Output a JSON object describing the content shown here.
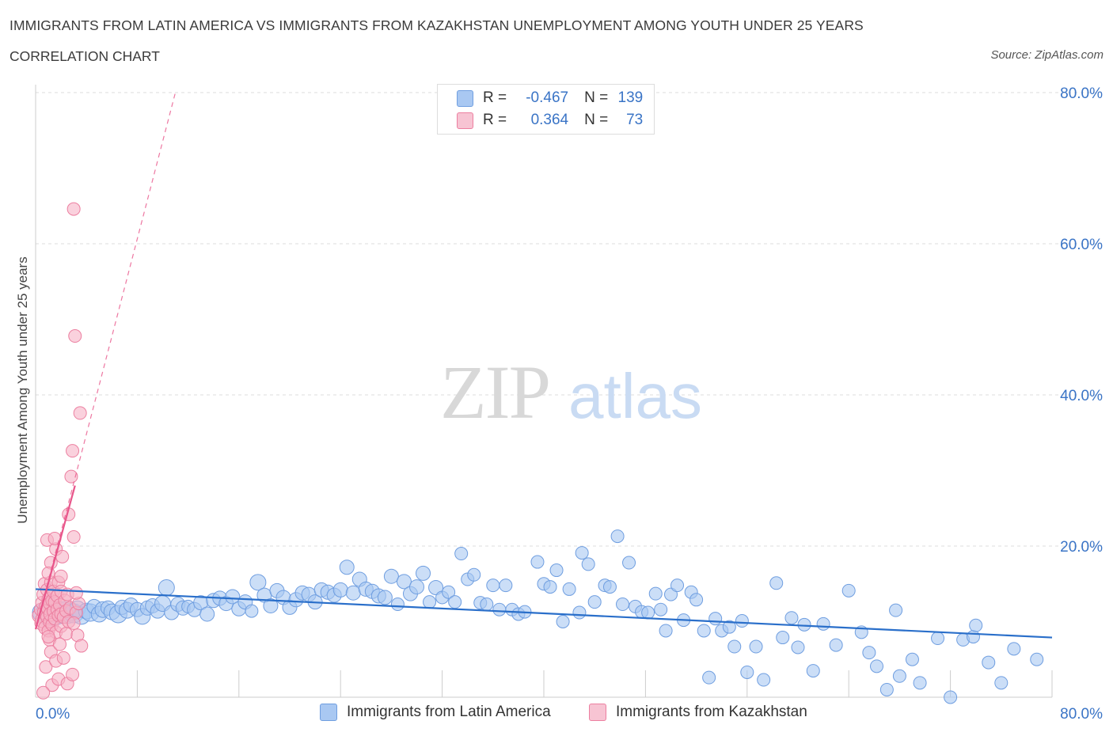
{
  "title": "IMMIGRANTS FROM LATIN AMERICA VS IMMIGRANTS FROM KAZAKHSTAN UNEMPLOYMENT AMONG YOUTH UNDER 25 YEARS",
  "subtitle": "CORRELATION CHART",
  "source": "Source: ZipAtlas.com",
  "watermark": {
    "zip": "ZIP",
    "atlas": "atlas"
  },
  "colors": {
    "blue_fill": "#a9c8f2",
    "blue_stroke": "#6f9ee0",
    "blue_line": "#2a6fca",
    "pink_fill": "#f7b3c6",
    "pink_stroke": "#ec7fa0",
    "pink_line": "#e8558a",
    "axis_text": "#3a74c6",
    "grid": "#dddddd"
  },
  "legend": {
    "rows": [
      {
        "r_label": "R =",
        "r_value": "-0.467",
        "n_label": "N =",
        "n_value": "139",
        "color": "#a9c8f2"
      },
      {
        "r_label": "R =",
        "r_value": "0.364",
        "n_label": "N =",
        "n_value": "73",
        "color": "#f7b3c6"
      }
    ]
  },
  "bottom_legend": [
    "Immigrants from Latin America",
    "Immigrants from Kazakhstan"
  ],
  "chart_data": {
    "type": "scatter",
    "xlabel": "",
    "ylabel": "Unemployment Among Youth under 25 years",
    "xlim": [
      0,
      80
    ],
    "ylim": [
      0,
      80
    ],
    "x_tick_labels": [
      "0.0%",
      "80.0%"
    ],
    "y_tick_labels": [
      "20.0%",
      "40.0%",
      "60.0%",
      "80.0%"
    ],
    "y_ticks": [
      20,
      40,
      60,
      80
    ],
    "series": [
      {
        "name": "Immigrants from Latin America",
        "R": -0.467,
        "N": 139,
        "trend": {
          "x": [
            0,
            80
          ],
          "y": [
            14.3,
            7.9
          ]
        },
        "points": [
          [
            0.5,
            11.2,
            12
          ],
          [
            0.8,
            11.5,
            11
          ],
          [
            1.0,
            10.8,
            13
          ],
          [
            1.2,
            11.8,
            12
          ],
          [
            1.5,
            11.0,
            14
          ],
          [
            1.8,
            11.4,
            12
          ],
          [
            2.0,
            10.9,
            11
          ],
          [
            2.2,
            11.6,
            10
          ],
          [
            2.5,
            11.0,
            12
          ],
          [
            2.8,
            11.3,
            11
          ],
          [
            3.0,
            11.1,
            12
          ],
          [
            3.3,
            11.7,
            10
          ],
          [
            3.6,
            10.8,
            11
          ],
          [
            4.0,
            11.4,
            10
          ],
          [
            4.3,
            11.2,
            11
          ],
          [
            4.6,
            12.0,
            9
          ],
          [
            5.0,
            11.0,
            10
          ],
          [
            5.3,
            11.6,
            10
          ],
          [
            5.7,
            11.8,
            9
          ],
          [
            6.0,
            11.3,
            10
          ],
          [
            6.5,
            11.0,
            11
          ],
          [
            6.8,
            11.9,
            9
          ],
          [
            7.2,
            11.5,
            10
          ],
          [
            7.5,
            12.2,
            9
          ],
          [
            8.0,
            11.6,
            9
          ],
          [
            8.4,
            10.7,
            10
          ],
          [
            8.8,
            11.8,
            9
          ],
          [
            9.2,
            12.1,
            9
          ],
          [
            9.6,
            11.4,
            9
          ],
          [
            10.0,
            12.4,
            10
          ],
          [
            10.3,
            14.5,
            10
          ],
          [
            10.7,
            11.2,
            9
          ],
          [
            11.2,
            12.3,
            9
          ],
          [
            11.6,
            11.8,
            9
          ],
          [
            12.0,
            12.0,
            8
          ],
          [
            12.5,
            11.6,
            9
          ],
          [
            13.0,
            12.5,
            9
          ],
          [
            13.5,
            11.0,
            9
          ],
          [
            14.0,
            12.8,
            9
          ],
          [
            14.5,
            13.1,
            9
          ],
          [
            15.0,
            12.4,
            9
          ],
          [
            15.5,
            13.3,
            9
          ],
          [
            16.0,
            11.7,
            9
          ],
          [
            16.5,
            12.6,
            9
          ],
          [
            17.0,
            11.4,
            8
          ],
          [
            17.5,
            15.2,
            10
          ],
          [
            18.0,
            13.5,
            9
          ],
          [
            18.5,
            12.1,
            9
          ],
          [
            19.0,
            14.1,
            9
          ],
          [
            19.5,
            13.2,
            9
          ],
          [
            20.0,
            11.9,
            9
          ],
          [
            20.5,
            12.9,
            9
          ],
          [
            21.0,
            13.8,
            9
          ],
          [
            21.5,
            13.6,
            9
          ],
          [
            22.0,
            12.6,
            9
          ],
          [
            22.5,
            14.2,
            9
          ],
          [
            23.0,
            13.9,
            9
          ],
          [
            23.5,
            13.5,
            9
          ],
          [
            24.0,
            14.2,
            9
          ],
          [
            24.5,
            17.2,
            9
          ],
          [
            25.0,
            13.8,
            9
          ],
          [
            25.5,
            15.6,
            9
          ],
          [
            26.0,
            14.3,
            9
          ],
          [
            26.5,
            14.0,
            9
          ],
          [
            27.0,
            13.4,
            9
          ],
          [
            27.5,
            13.2,
            9
          ],
          [
            28.0,
            16.0,
            9
          ],
          [
            28.5,
            12.3,
            8
          ],
          [
            29.0,
            15.3,
            9
          ],
          [
            29.5,
            13.7,
            9
          ],
          [
            30.0,
            14.6,
            9
          ],
          [
            30.5,
            16.4,
            9
          ],
          [
            31.0,
            12.6,
            8
          ],
          [
            31.5,
            14.5,
            9
          ],
          [
            32.0,
            13.2,
            8
          ],
          [
            32.5,
            13.9,
            8
          ],
          [
            33.0,
            12.6,
            8
          ],
          [
            33.5,
            19.0,
            8
          ],
          [
            34.0,
            15.6,
            8
          ],
          [
            34.5,
            16.2,
            8
          ],
          [
            35.0,
            12.5,
            8
          ],
          [
            35.5,
            12.3,
            8
          ],
          [
            36.0,
            14.8,
            8
          ],
          [
            36.5,
            11.6,
            8
          ],
          [
            37.0,
            14.8,
            8
          ],
          [
            37.5,
            11.6,
            8
          ],
          [
            38.0,
            11.0,
            8
          ],
          [
            38.5,
            11.3,
            8
          ],
          [
            39.5,
            17.9,
            8
          ],
          [
            40.0,
            15.0,
            8
          ],
          [
            40.5,
            14.6,
            8
          ],
          [
            41.0,
            16.8,
            8
          ],
          [
            41.5,
            10.0,
            8
          ],
          [
            42.0,
            14.3,
            8
          ],
          [
            42.8,
            11.2,
            8
          ],
          [
            43.0,
            19.1,
            8
          ],
          [
            43.5,
            17.6,
            8
          ],
          [
            44.0,
            12.6,
            8
          ],
          [
            44.8,
            14.8,
            8
          ],
          [
            45.2,
            14.6,
            8
          ],
          [
            45.8,
            21.3,
            8
          ],
          [
            46.2,
            12.3,
            8
          ],
          [
            46.7,
            17.8,
            8
          ],
          [
            47.2,
            12.0,
            8
          ],
          [
            47.7,
            11.3,
            8
          ],
          [
            48.2,
            11.2,
            8
          ],
          [
            48.8,
            13.7,
            8
          ],
          [
            49.2,
            11.6,
            8
          ],
          [
            49.6,
            8.8,
            8
          ],
          [
            50.0,
            13.6,
            8
          ],
          [
            50.5,
            14.8,
            8
          ],
          [
            51.0,
            10.2,
            8
          ],
          [
            51.6,
            13.9,
            8
          ],
          [
            52.0,
            12.9,
            8
          ],
          [
            52.6,
            8.8,
            8
          ],
          [
            53.0,
            2.6,
            8
          ],
          [
            53.5,
            10.4,
            8
          ],
          [
            54.0,
            8.8,
            8
          ],
          [
            54.6,
            9.3,
            8
          ],
          [
            55.0,
            6.7,
            8
          ],
          [
            55.6,
            10.1,
            8
          ],
          [
            56.0,
            3.3,
            8
          ],
          [
            56.7,
            6.7,
            8
          ],
          [
            57.3,
            2.3,
            8
          ],
          [
            58.3,
            15.1,
            8
          ],
          [
            58.8,
            7.9,
            8
          ],
          [
            59.5,
            10.5,
            8
          ],
          [
            60.0,
            6.6,
            8
          ],
          [
            60.5,
            9.6,
            8
          ],
          [
            61.2,
            3.5,
            8
          ],
          [
            62.0,
            9.7,
            8
          ],
          [
            63.0,
            6.9,
            8
          ],
          [
            64.0,
            14.1,
            8
          ],
          [
            65.0,
            8.6,
            8
          ],
          [
            65.6,
            5.9,
            8
          ],
          [
            66.2,
            4.1,
            8
          ],
          [
            67.0,
            1.0,
            8
          ],
          [
            67.7,
            11.5,
            8
          ],
          [
            68.0,
            2.8,
            8
          ],
          [
            69.0,
            5.0,
            8
          ],
          [
            69.6,
            1.9,
            8
          ],
          [
            71.0,
            7.8,
            8
          ],
          [
            72.0,
            0.0,
            8
          ],
          [
            73.0,
            7.6,
            8
          ],
          [
            73.8,
            8.0,
            8
          ],
          [
            74.0,
            9.5,
            8
          ],
          [
            75.0,
            4.6,
            8
          ],
          [
            76.0,
            1.9,
            8
          ],
          [
            77.0,
            6.4,
            8
          ],
          [
            78.8,
            5.0,
            8
          ]
        ]
      },
      {
        "name": "Immigrants from Kazakhstan",
        "R": 0.364,
        "N": 73,
        "trend": {
          "x": [
            0,
            3.1
          ],
          "y": [
            9.0,
            28.0
          ]
        },
        "trend_extended": {
          "x": [
            0,
            11.0
          ],
          "y": [
            9.0,
            80.0
          ]
        },
        "points": [
          [
            0.3,
            10.8,
            9
          ],
          [
            0.4,
            11.6,
            8
          ],
          [
            0.5,
            9.8,
            9
          ],
          [
            0.5,
            12.5,
            8
          ],
          [
            0.6,
            13.6,
            8
          ],
          [
            0.6,
            10.2,
            10
          ],
          [
            0.7,
            11.2,
            9
          ],
          [
            0.7,
            15.0,
            8
          ],
          [
            0.8,
            12.0,
            8
          ],
          [
            0.8,
            9.2,
            9
          ],
          [
            0.9,
            14.2,
            8
          ],
          [
            0.9,
            10.6,
            8
          ],
          [
            1.0,
            11.8,
            9
          ],
          [
            1.0,
            8.8,
            8
          ],
          [
            1.0,
            13.0,
            8
          ],
          [
            1.1,
            12.4,
            8
          ],
          [
            1.1,
            10.0,
            8
          ],
          [
            1.2,
            15.2,
            8
          ],
          [
            1.2,
            11.0,
            9
          ],
          [
            1.2,
            17.8,
            8
          ],
          [
            1.3,
            12.8,
            8
          ],
          [
            1.3,
            9.6,
            8
          ],
          [
            1.4,
            11.4,
            8
          ],
          [
            1.4,
            14.0,
            8
          ],
          [
            1.5,
            10.4,
            8
          ],
          [
            1.5,
            12.6,
            8
          ],
          [
            1.6,
            19.6,
            8
          ],
          [
            1.6,
            8.6,
            8
          ],
          [
            1.7,
            11.6,
            8
          ],
          [
            1.7,
            13.4,
            8
          ],
          [
            1.8,
            10.8,
            8
          ],
          [
            1.8,
            15.2,
            8
          ],
          [
            1.9,
            12.2,
            8
          ],
          [
            2.0,
            9.4,
            8
          ],
          [
            2.0,
            14.0,
            8
          ],
          [
            2.0,
            11.0,
            8
          ],
          [
            2.1,
            18.6,
            8
          ],
          [
            2.2,
            10.6,
            8
          ],
          [
            2.3,
            12.8,
            8
          ],
          [
            2.4,
            11.4,
            8
          ],
          [
            2.4,
            8.4,
            8
          ],
          [
            2.5,
            13.6,
            8
          ],
          [
            2.6,
            24.2,
            8
          ],
          [
            2.6,
            10.0,
            8
          ],
          [
            2.7,
            11.8,
            8
          ],
          [
            2.8,
            29.2,
            8
          ],
          [
            2.9,
            32.6,
            8
          ],
          [
            3.0,
            21.2,
            8
          ],
          [
            3.1,
            47.8,
            8
          ],
          [
            3.2,
            11.2,
            8
          ],
          [
            3.3,
            8.2,
            8
          ],
          [
            3.4,
            12.4,
            8
          ],
          [
            3.5,
            37.6,
            8
          ],
          [
            3.6,
            6.8,
            8
          ],
          [
            0.9,
            20.8,
            8
          ],
          [
            1.0,
            16.4,
            8
          ],
          [
            1.1,
            7.6,
            8
          ],
          [
            0.8,
            4.0,
            8
          ],
          [
            1.3,
            1.6,
            8
          ],
          [
            1.2,
            6.0,
            8
          ],
          [
            1.6,
            4.8,
            8
          ],
          [
            1.8,
            2.4,
            8
          ],
          [
            2.2,
            5.2,
            8
          ],
          [
            0.6,
            0.6,
            8
          ],
          [
            1.9,
            7.0,
            8
          ],
          [
            2.5,
            1.8,
            8
          ],
          [
            2.9,
            3.0,
            8
          ],
          [
            2.0,
            16.0,
            8
          ],
          [
            1.5,
            21.0,
            8
          ],
          [
            3.0,
            9.8,
            8
          ],
          [
            3.2,
            13.8,
            8
          ],
          [
            3.0,
            64.6,
            8
          ],
          [
            1.0,
            8.0,
            8
          ]
        ]
      }
    ]
  }
}
